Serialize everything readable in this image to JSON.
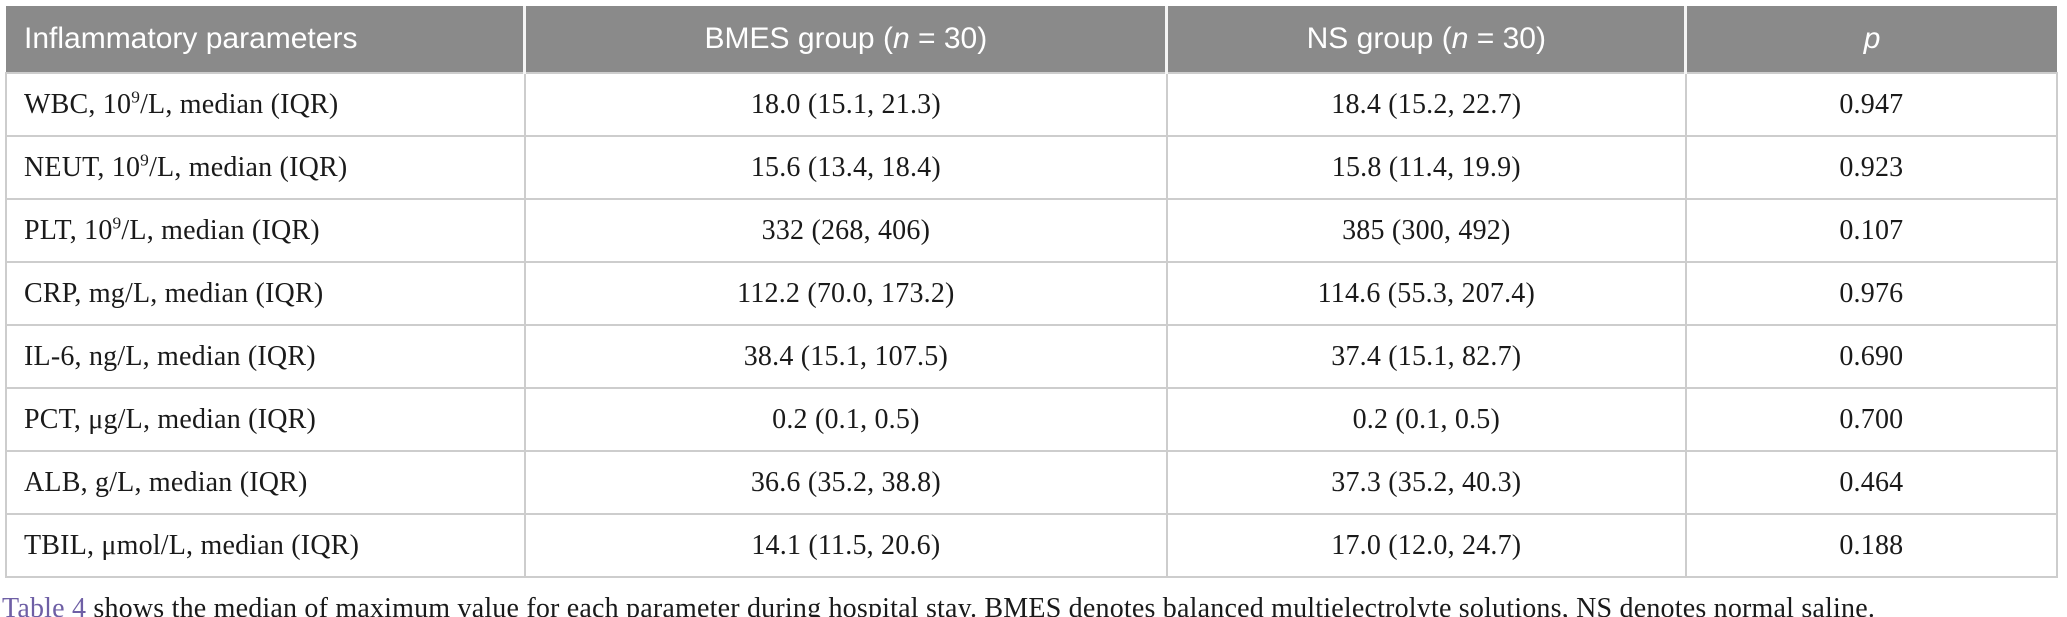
{
  "colors": {
    "header_bg": "#8a8a8a",
    "header_text": "#ffffff",
    "border": "#cdcdcd",
    "link": "#6e5fa5",
    "text": "#1a1a1a"
  },
  "table": {
    "header": {
      "col1": "Inflammatory parameters",
      "col2_pre": "BMES group (",
      "col2_italic": "n",
      "col2_post": " = 30)",
      "col3_pre": "NS group (",
      "col3_italic": "n",
      "col3_post": " = 30)",
      "col4": "p"
    },
    "rows": [
      {
        "param_pre": "WBC, 10",
        "param_sup": "9",
        "param_post": "/L, median (IQR)",
        "bmes": "18.0 (15.1, 21.3)",
        "ns": "18.4 (15.2, 22.7)",
        "p": "0.947"
      },
      {
        "param_pre": "NEUT, 10",
        "param_sup": "9",
        "param_post": "/L, median (IQR)",
        "bmes": "15.6 (13.4, 18.4)",
        "ns": "15.8 (11.4, 19.9)",
        "p": "0.923"
      },
      {
        "param_pre": "PLT, 10",
        "param_sup": "9",
        "param_post": "/L, median (IQR)",
        "bmes": "332 (268, 406)",
        "ns": "385 (300, 492)",
        "p": "0.107"
      },
      {
        "param_pre": "CRP, mg/L, median (IQR)",
        "param_sup": "",
        "param_post": "",
        "bmes": "112.2 (70.0, 173.2)",
        "ns": "114.6 (55.3, 207.4)",
        "p": "0.976"
      },
      {
        "param_pre": "IL-6, ng/L, median (IQR)",
        "param_sup": "",
        "param_post": "",
        "bmes": "38.4 (15.1, 107.5)",
        "ns": "37.4 (15.1, 82.7)",
        "p": "0.690"
      },
      {
        "param_pre": "PCT, μg/L, median (IQR)",
        "param_sup": "",
        "param_post": "",
        "bmes": "0.2 (0.1, 0.5)",
        "ns": "0.2 (0.1, 0.5)",
        "p": "0.700"
      },
      {
        "param_pre": "ALB, g/L, median (IQR)",
        "param_sup": "",
        "param_post": "",
        "bmes": "36.6 (35.2, 38.8)",
        "ns": "37.3 (35.2, 40.3)",
        "p": "0.464"
      },
      {
        "param_pre": "TBIL, μmol/L, median (IQR)",
        "param_sup": "",
        "param_post": "",
        "bmes": "14.1 (11.5, 20.6)",
        "ns": "17.0 (12.0, 24.7)",
        "p": "0.188"
      }
    ]
  },
  "caption": {
    "link": "Table 4",
    "text": " shows the median of maximum value for each parameter during hospital stay. BMES denotes balanced multielectrolyte solutions, NS denotes normal saline."
  }
}
